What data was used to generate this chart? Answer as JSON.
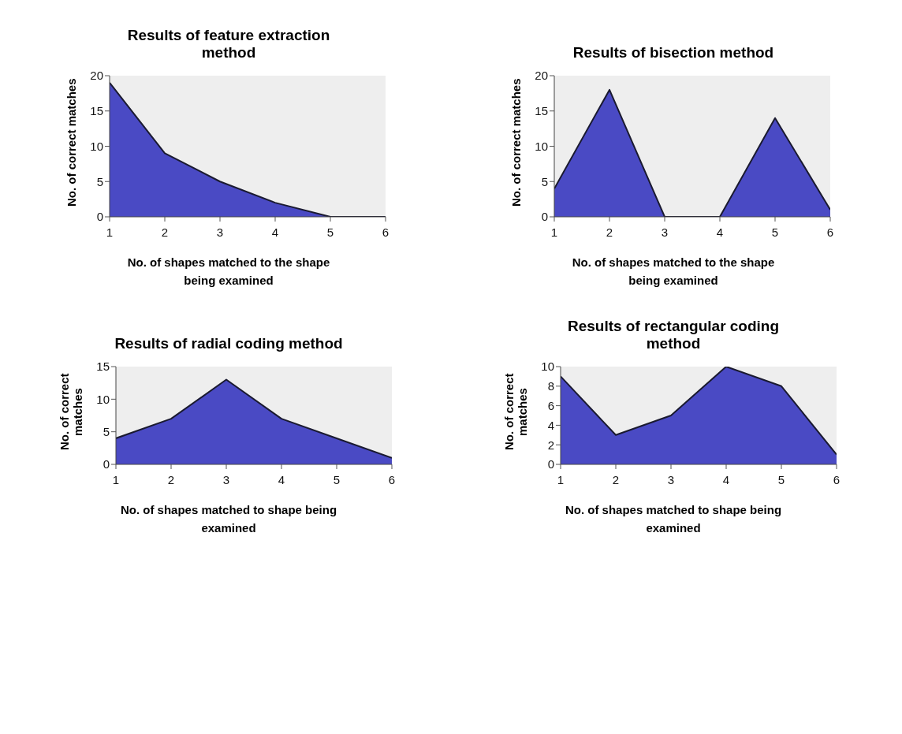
{
  "chart_data": [
    {
      "type": "area",
      "title": "Results of feature extraction method",
      "xlabel": "No. of shapes matched to the shape being examined",
      "ylabel": "No. of correct matches",
      "x": [
        1,
        2,
        3,
        4,
        5,
        6
      ],
      "values": [
        19,
        9,
        5,
        2,
        0,
        0
      ],
      "color": "#4a4ac4",
      "xlim": [
        1,
        6
      ],
      "xticks": [
        1,
        2,
        3,
        4,
        5,
        6
      ],
      "ylim": [
        0,
        20
      ],
      "yticks": [
        0,
        5,
        10,
        15,
        20
      ]
    },
    {
      "type": "area",
      "title": "Results of bisection method",
      "xlabel": "No. of shapes matched to the shape being examined",
      "ylabel": "No. of correct matches",
      "x": [
        1,
        2,
        3,
        4,
        5,
        6
      ],
      "values": [
        4,
        18,
        0,
        0,
        14,
        1
      ],
      "color": "#4a4ac4",
      "xlim": [
        1,
        6
      ],
      "xticks": [
        1,
        2,
        3,
        4,
        5,
        6
      ],
      "ylim": [
        0,
        20
      ],
      "yticks": [
        0,
        5,
        10,
        15,
        20
      ]
    },
    {
      "type": "area",
      "title": "Results of radial coding method",
      "xlabel": "No. of shapes matched to shape being examined",
      "ylabel": "No. of correct matches",
      "x": [
        1,
        2,
        3,
        4,
        5,
        6
      ],
      "values": [
        4,
        7,
        13,
        7,
        4,
        1
      ],
      "color": "#4a4ac4",
      "xlim": [
        1,
        6
      ],
      "xticks": [
        1,
        2,
        3,
        4,
        5,
        6
      ],
      "ylim": [
        0,
        15
      ],
      "yticks": [
        0,
        5,
        10,
        15
      ]
    },
    {
      "type": "area",
      "title": "Results of rectangular coding method",
      "xlabel": "No. of shapes matched to shape being examined",
      "ylabel": "No. of correct matches",
      "x": [
        1,
        2,
        3,
        4,
        5,
        6
      ],
      "values": [
        9,
        3,
        5,
        10,
        8,
        1
      ],
      "color": "#4a4ac4",
      "xlim": [
        1,
        6
      ],
      "xticks": [
        1,
        2,
        3,
        4,
        5,
        6
      ],
      "ylim": [
        0,
        10
      ],
      "yticks": [
        0,
        2,
        4,
        6,
        8,
        10
      ]
    }
  ]
}
